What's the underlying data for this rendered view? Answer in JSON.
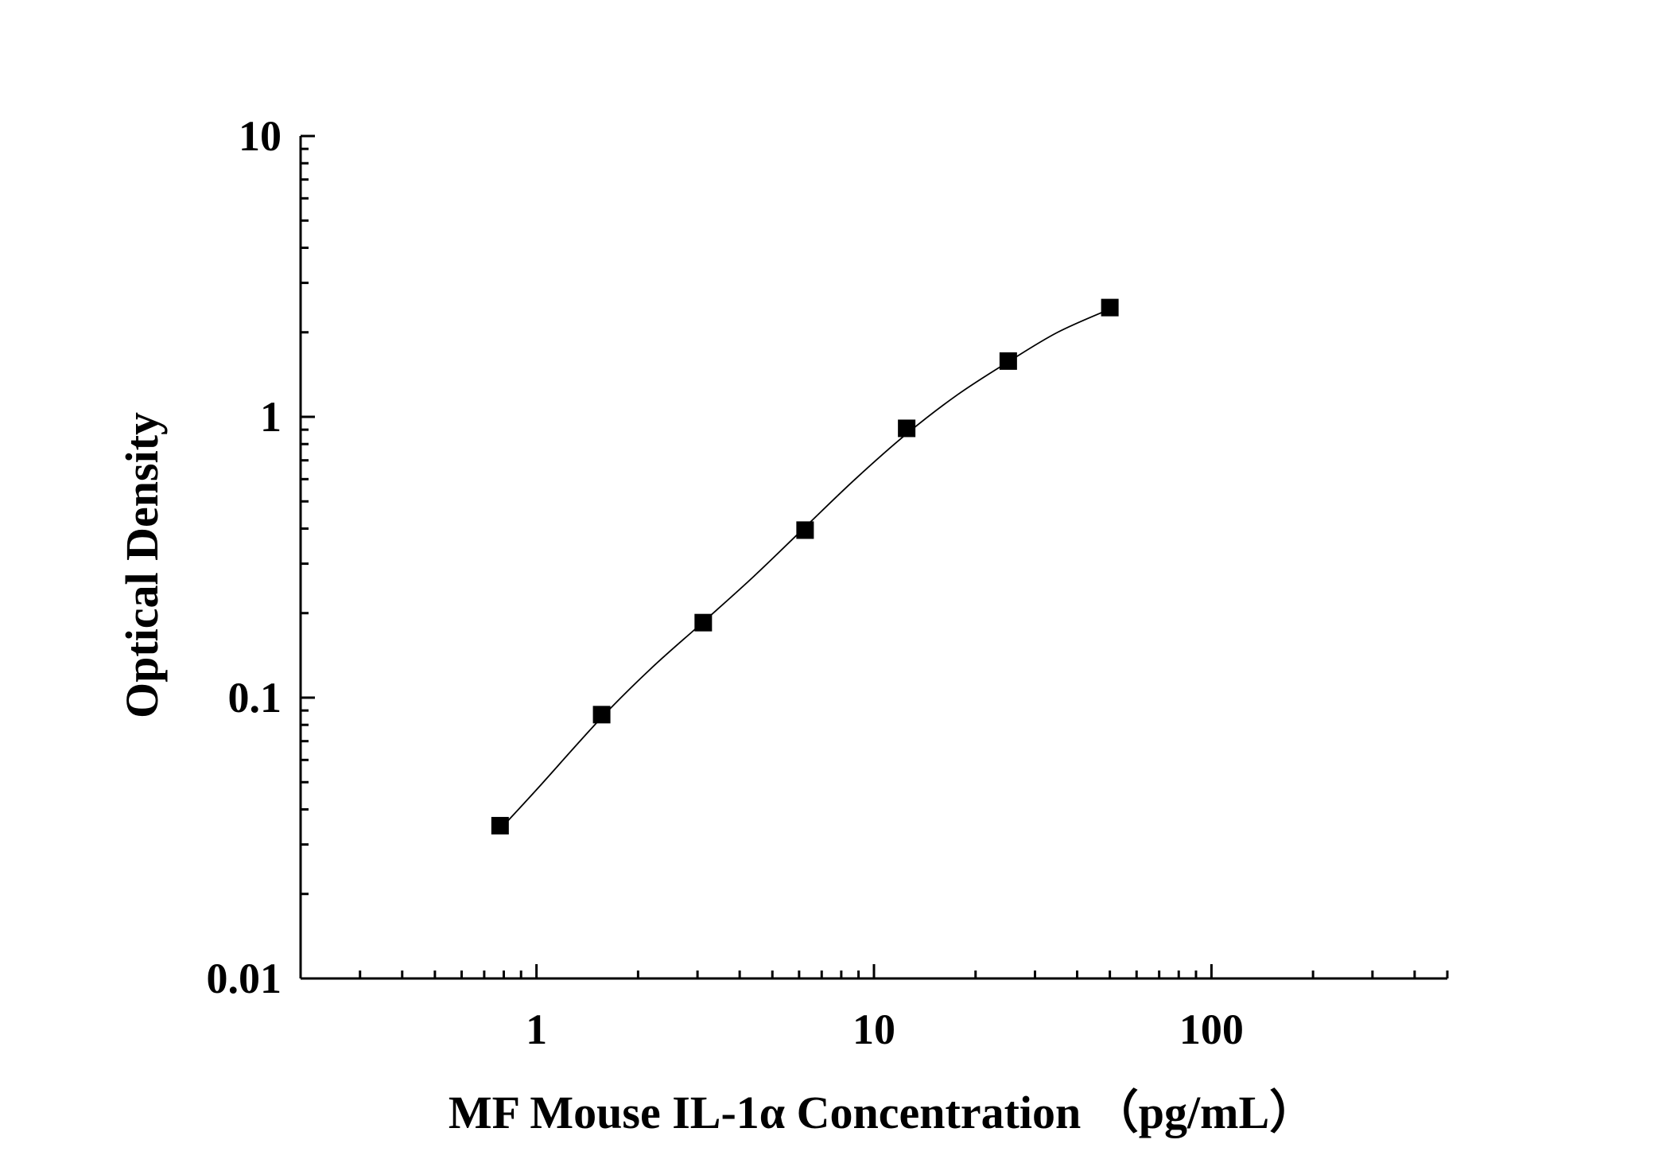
{
  "chart_data": {
    "type": "scatter",
    "title": "",
    "xlabel": "MF Mouse IL-1α Concentration （pg/mL）",
    "ylabel": "Optical Density",
    "xscale": "log",
    "yscale": "log",
    "xlim": [
      0.2,
      500
    ],
    "ylim": [
      0.01,
      10
    ],
    "x_ticks": [
      {
        "value": 1,
        "label": "1"
      },
      {
        "value": 10,
        "label": "10"
      },
      {
        "value": 100,
        "label": "100"
      }
    ],
    "y_ticks": [
      {
        "value": 0.01,
        "label": "0.01"
      },
      {
        "value": 0.1,
        "label": "0.1"
      },
      {
        "value": 1,
        "label": "1"
      },
      {
        "value": 10,
        "label": "10"
      }
    ],
    "grid": false,
    "legend": "none",
    "series": [
      {
        "marker": "square",
        "color": "#000000",
        "x": [
          0.78,
          1.56,
          3.12,
          6.25,
          12.5,
          25,
          50
        ],
        "y": [
          0.035,
          0.087,
          0.185,
          0.395,
          0.91,
          1.58,
          2.45
        ]
      }
    ],
    "fit_curve": {
      "color": "#000000",
      "x": [
        0.78,
        1.0,
        1.56,
        2.2,
        3.12,
        4.4,
        6.25,
        8.8,
        12.5,
        17.7,
        25,
        35,
        50
      ],
      "y": [
        0.034,
        0.047,
        0.085,
        0.128,
        0.186,
        0.27,
        0.405,
        0.6,
        0.87,
        1.2,
        1.57,
        2.0,
        2.42
      ]
    }
  }
}
